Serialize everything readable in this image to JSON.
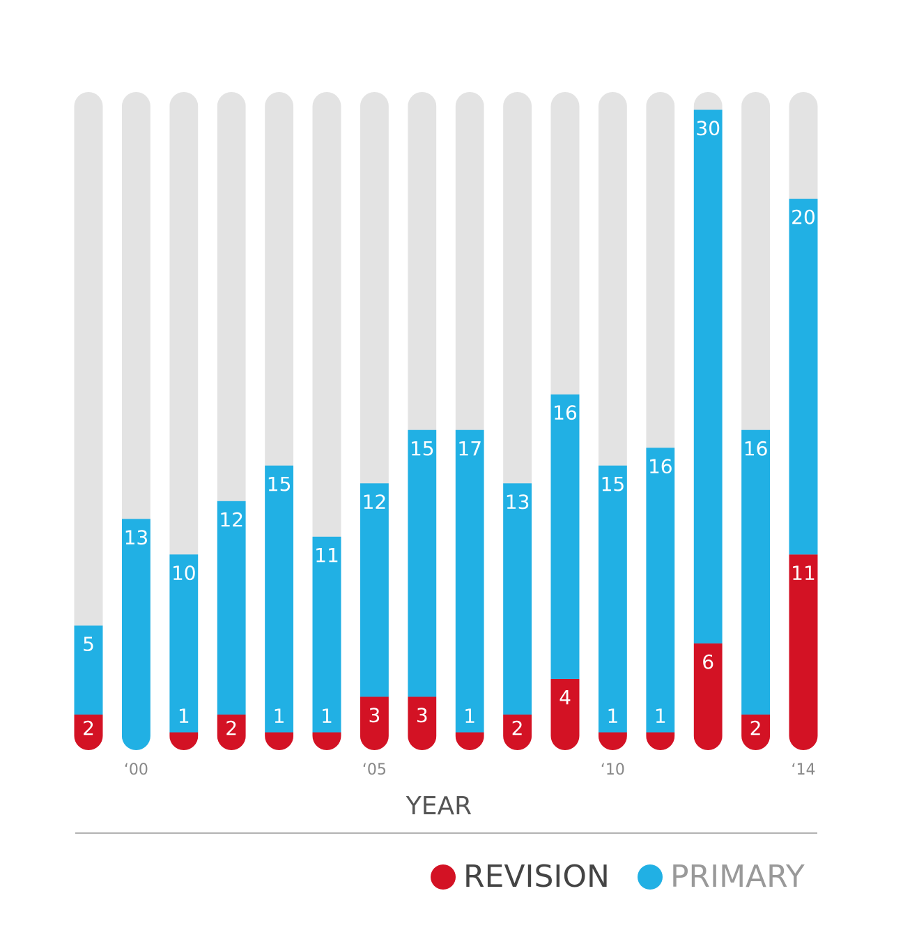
{
  "chart_data": {
    "type": "stacked-bar",
    "x_label": "YEAR",
    "categories": [
      null,
      "‘00",
      null,
      null,
      null,
      null,
      "‘05",
      null,
      null,
      null,
      null,
      "‘10",
      null,
      null,
      null,
      "‘14"
    ],
    "series": [
      {
        "name": "REVISION",
        "color": "#d31224",
        "values": [
          2,
          null,
          1,
          2,
          1,
          1,
          3,
          3,
          1,
          2,
          4,
          1,
          1,
          6,
          2,
          11
        ]
      },
      {
        "name": "PRIMARY",
        "color": "#21b0e4",
        "values": [
          5,
          13,
          10,
          12,
          15,
          11,
          12,
          15,
          17,
          13,
          16,
          15,
          16,
          30,
          16,
          20
        ]
      }
    ],
    "ylim": [
      0,
      37
    ]
  }
}
